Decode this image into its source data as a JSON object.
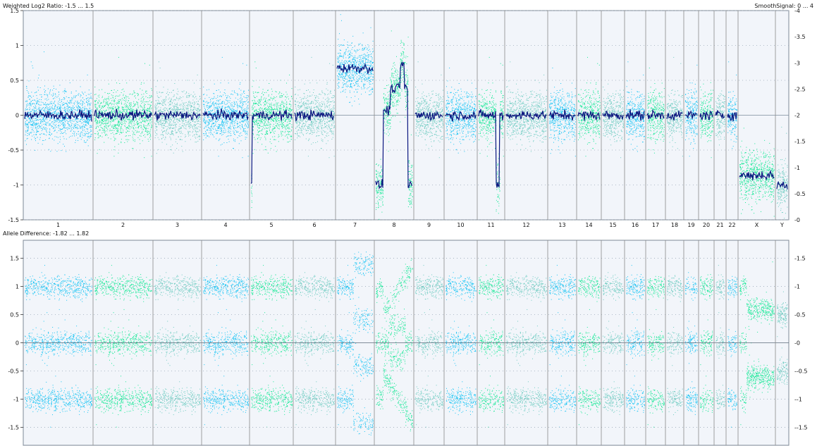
{
  "chart_data": [
    {
      "type": "scatter",
      "title": "Weighted Log2 Ratio: -1.5 ... 1.5",
      "right_title": "SmoothSignal: 0 ... 4",
      "ylim": [
        -1.5,
        1.5
      ],
      "yticks": [
        "-1.5",
        "-1",
        "-0.5",
        "0",
        "0.5",
        "1",
        "1.5"
      ],
      "y2lim": [
        0,
        4
      ],
      "y2ticks": [
        "0",
        "0.5",
        "1",
        "1.5",
        "2",
        "2.5",
        "3",
        "3.5",
        "4"
      ],
      "grid": true,
      "chromosomes": [
        "1",
        "2",
        "3",
        "4",
        "5",
        "6",
        "7",
        "8",
        "9",
        "10",
        "11",
        "12",
        "13",
        "14",
        "15",
        "16",
        "17",
        "18",
        "19",
        "20",
        "21",
        "22",
        "X",
        "Y"
      ],
      "smooth_signal_by_chromosome": [
        2,
        2,
        2,
        2,
        2,
        2,
        3.2,
        2.6,
        2,
        2,
        2,
        2,
        2,
        2,
        2,
        2,
        2,
        2,
        2,
        2,
        2,
        2,
        1.1,
        1
      ],
      "segments": [
        {
          "chr": "5",
          "start_fraction": 0.0,
          "end_fraction": 0.02,
          "smooth": 1.0
        },
        {
          "chr": "7",
          "start_fraction": 0.45,
          "end_fraction": 1.0,
          "smooth": 3.2
        },
        {
          "chr": "8",
          "start_fraction": 0.0,
          "end_fraction": 0.2,
          "smooth": 1.0
        },
        {
          "chr": "8",
          "start_fraction": 0.2,
          "end_fraction": 0.4,
          "smooth": 2.1
        },
        {
          "chr": "8",
          "start_fraction": 0.4,
          "end_fraction": 0.66,
          "smooth": 2.6
        },
        {
          "chr": "8",
          "start_fraction": 0.66,
          "end_fraction": 0.78,
          "smooth": 3.3
        },
        {
          "chr": "8",
          "start_fraction": 0.88,
          "end_fraction": 1.0,
          "smooth": 1.0
        },
        {
          "chr": "11",
          "start_fraction": 0.7,
          "end_fraction": 0.85,
          "smooth": 1.0
        },
        {
          "chr": "X",
          "start_fraction": 0.2,
          "end_fraction": 1.0,
          "smooth": 1.1
        }
      ]
    },
    {
      "type": "scatter",
      "title": "Allele Difference: -1.82 ... 1.82",
      "ylim": [
        -1.82,
        1.82
      ],
      "yticks": [
        "-1.5",
        "-1",
        "-0.5",
        "0",
        "0.5",
        "1",
        "1.5"
      ],
      "grid": true,
      "bands_by_chromosome_normal": [
        -1,
        0,
        1
      ],
      "notable": [
        {
          "chr": "7",
          "bands": [
            -1.4,
            -0.4,
            0.4,
            1.4
          ]
        },
        {
          "chr": "8",
          "pattern": "diverging"
        },
        {
          "chr": "X",
          "bands": [
            -0.6,
            0.6
          ]
        }
      ]
    }
  ],
  "colors": {
    "background": "#f2f5fa",
    "chr_a": "#14c4f4",
    "chr_b": "#16e896",
    "chr_c": "#6ccbc0",
    "smooth": "#0b1780",
    "grid": "#9aa8b8",
    "divider": "#8a8a8a"
  }
}
